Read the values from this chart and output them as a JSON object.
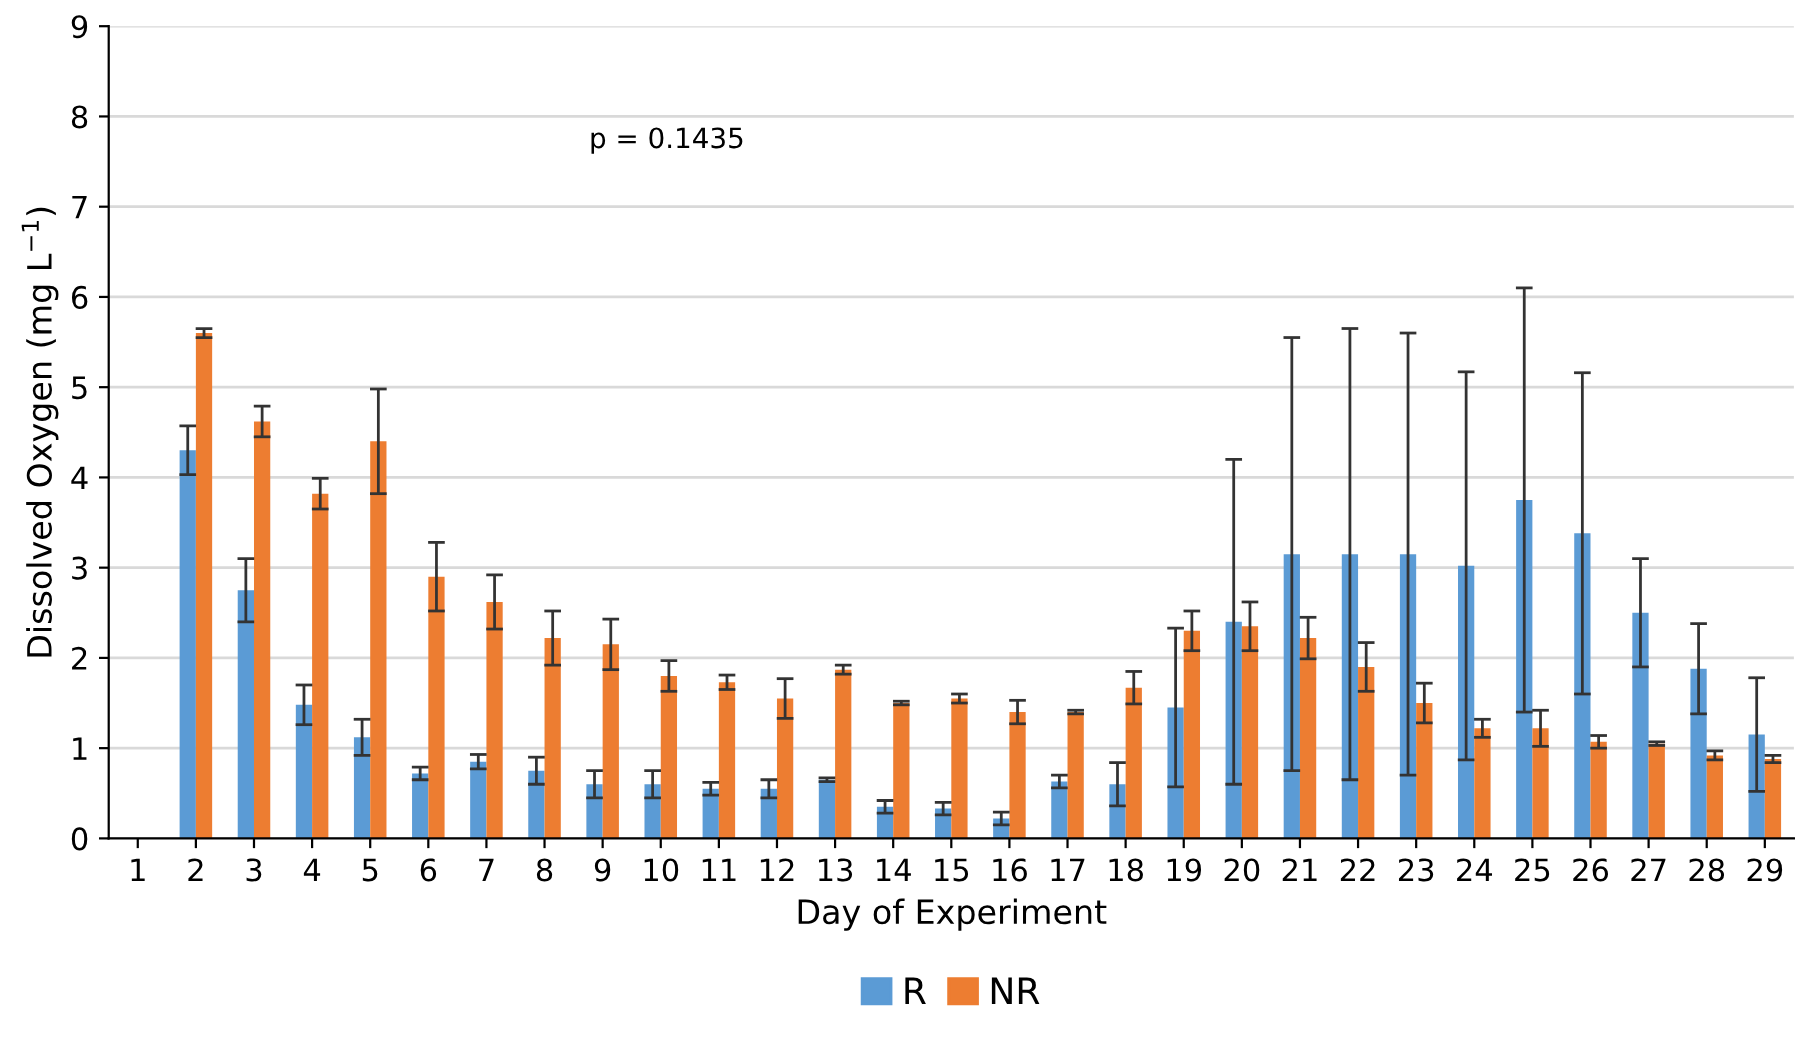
{
  "chart_data": {
    "type": "bar",
    "xlabel": "Day of Experiment",
    "ylabel": "Dissolved Oxygen (mg L$^{−1}$)",
    "categories": [
      "1",
      "2",
      "3",
      "4",
      "5",
      "6",
      "7",
      "8",
      "9",
      "10",
      "11",
      "12",
      "13",
      "14",
      "15",
      "16",
      "17",
      "18",
      "19",
      "20",
      "21",
      "22",
      "23",
      "24",
      "25",
      "26",
      "27",
      "28",
      "29"
    ],
    "series": [
      {
        "name": "R",
        "color": "#5b9bd5",
        "values": [
          null,
          4.3,
          2.75,
          1.48,
          1.12,
          0.72,
          0.85,
          0.75,
          0.6,
          0.6,
          0.55,
          0.55,
          0.65,
          0.35,
          0.33,
          0.22,
          0.63,
          0.6,
          1.45,
          2.4,
          3.15,
          3.15,
          3.15,
          3.02,
          3.75,
          3.38,
          2.5,
          1.88,
          1.15
        ],
        "errors": [
          null,
          0.27,
          0.35,
          0.22,
          0.2,
          0.07,
          0.08,
          0.15,
          0.15,
          0.15,
          0.07,
          0.1,
          0.02,
          0.07,
          0.07,
          0.07,
          0.07,
          0.24,
          0.88,
          1.8,
          2.4,
          2.5,
          2.45,
          2.15,
          2.35,
          1.78,
          0.6,
          0.5,
          0.63
        ]
      },
      {
        "name": "NR",
        "color": "#ed7d31",
        "values": [
          null,
          5.6,
          4.62,
          3.82,
          4.4,
          2.9,
          2.62,
          2.22,
          2.15,
          1.8,
          1.73,
          1.55,
          1.87,
          1.5,
          1.55,
          1.4,
          1.4,
          1.67,
          2.3,
          2.35,
          2.22,
          1.9,
          1.5,
          1.22,
          1.22,
          1.07,
          1.05,
          0.92,
          0.88
        ],
        "errors": [
          null,
          0.05,
          0.17,
          0.17,
          0.58,
          0.38,
          0.3,
          0.3,
          0.28,
          0.17,
          0.08,
          0.22,
          0.05,
          0.02,
          0.05,
          0.13,
          0.02,
          0.18,
          0.22,
          0.27,
          0.23,
          0.27,
          0.22,
          0.1,
          0.2,
          0.07,
          0.02,
          0.05,
          0.04
        ]
      }
    ],
    "ylim": [
      0,
      9
    ],
    "yticks": [
      0,
      1,
      2,
      3,
      4,
      5,
      6,
      7,
      8,
      9
    ],
    "annotations": [
      "p = 0.1435"
    ],
    "grid": "y",
    "legend": "bottom"
  }
}
